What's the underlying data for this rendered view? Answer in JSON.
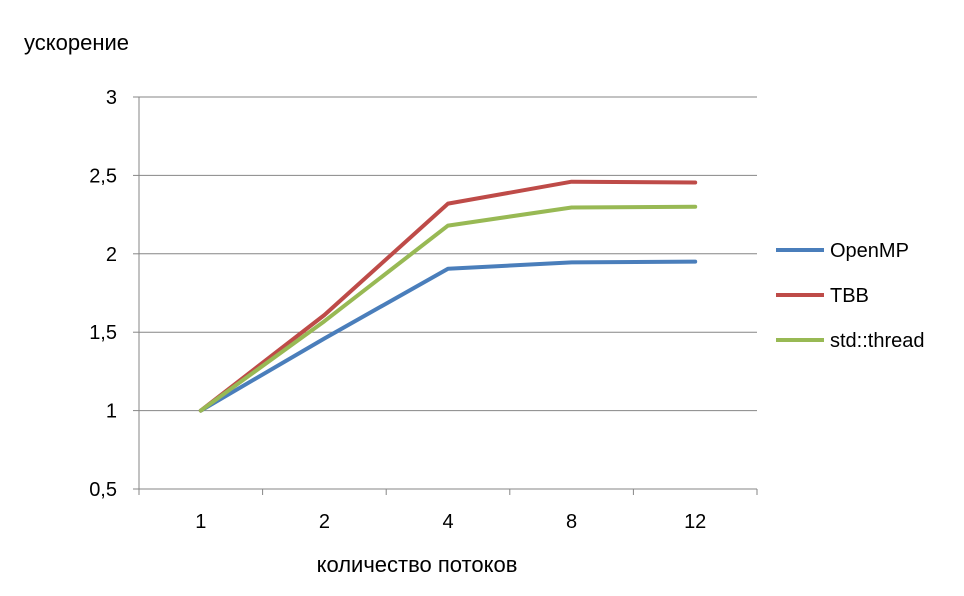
{
  "chart_data": {
    "type": "line",
    "title": "",
    "xlabel": "количество потоков",
    "ylabel": "ускорение",
    "categories": [
      "1",
      "2",
      "4",
      "8",
      "12"
    ],
    "yticks": [
      "0,5",
      "1",
      "1,5",
      "2",
      "2,5",
      "3"
    ],
    "ytick_values": [
      0.5,
      1,
      1.5,
      2,
      2.5,
      3
    ],
    "ylim": [
      0.5,
      3
    ],
    "grid": true,
    "legend_position": "right",
    "series": [
      {
        "name": "OpenMP",
        "color": "#4a7ebb",
        "values": [
          1,
          1.46,
          1.905,
          1.945,
          1.95
        ]
      },
      {
        "name": "TBB",
        "color": "#be4b48",
        "values": [
          1,
          1.61,
          2.32,
          2.46,
          2.455
        ]
      },
      {
        "name": "std::thread",
        "color": "#98b954",
        "values": [
          1,
          1.57,
          2.18,
          2.295,
          2.3
        ]
      }
    ],
    "axis_color": "#868686",
    "grid_color": "#868686"
  }
}
